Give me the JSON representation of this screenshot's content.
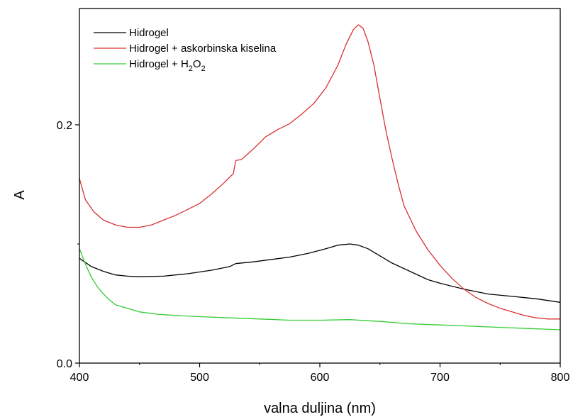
{
  "chart_data": {
    "type": "line",
    "xlabel": "valna duljina (nm)",
    "ylabel": "A",
    "xlim": [
      400,
      800
    ],
    "ylim": [
      0.0,
      0.29
    ],
    "x_ticks": [
      400,
      500,
      600,
      700,
      800
    ],
    "x_tick_labels": [
      "400",
      "500",
      "600",
      "700",
      "800"
    ],
    "y_ticks": [
      0.0,
      0.2
    ],
    "y_tick_labels": [
      "0.0",
      "0.2"
    ],
    "legend_position": "top-left",
    "grid": false,
    "series": [
      {
        "name": "Hidrogel",
        "color": "#000000",
        "points": [
          [
            400,
            0.088
          ],
          [
            410,
            0.081
          ],
          [
            420,
            0.077
          ],
          [
            430,
            0.074
          ],
          [
            440,
            0.073
          ],
          [
            450,
            0.0725
          ],
          [
            470,
            0.073
          ],
          [
            490,
            0.075
          ],
          [
            510,
            0.078
          ],
          [
            525,
            0.081
          ],
          [
            530,
            0.0835
          ],
          [
            545,
            0.085
          ],
          [
            560,
            0.087
          ],
          [
            575,
            0.089
          ],
          [
            590,
            0.092
          ],
          [
            605,
            0.096
          ],
          [
            615,
            0.099
          ],
          [
            625,
            0.1
          ],
          [
            632,
            0.099
          ],
          [
            640,
            0.096
          ],
          [
            650,
            0.09
          ],
          [
            660,
            0.084
          ],
          [
            675,
            0.077
          ],
          [
            690,
            0.07
          ],
          [
            700,
            0.067
          ],
          [
            720,
            0.062
          ],
          [
            740,
            0.058
          ],
          [
            760,
            0.056
          ],
          [
            780,
            0.054
          ],
          [
            800,
            0.051
          ]
        ]
      },
      {
        "name": "Hidrogel + askorbinska kiselina",
        "color": "#d93030",
        "points": [
          [
            400,
            0.155
          ],
          [
            405,
            0.137
          ],
          [
            412,
            0.127
          ],
          [
            420,
            0.12
          ],
          [
            430,
            0.116
          ],
          [
            440,
            0.114
          ],
          [
            450,
            0.114
          ],
          [
            460,
            0.116
          ],
          [
            470,
            0.12
          ],
          [
            480,
            0.124
          ],
          [
            490,
            0.129
          ],
          [
            500,
            0.134
          ],
          [
            510,
            0.142
          ],
          [
            520,
            0.151
          ],
          [
            528,
            0.159
          ],
          [
            530,
            0.17
          ],
          [
            535,
            0.171
          ],
          [
            545,
            0.18
          ],
          [
            555,
            0.19
          ],
          [
            565,
            0.196
          ],
          [
            575,
            0.201
          ],
          [
            585,
            0.209
          ],
          [
            595,
            0.218
          ],
          [
            605,
            0.231
          ],
          [
            615,
            0.25
          ],
          [
            622,
            0.268
          ],
          [
            628,
            0.28
          ],
          [
            632,
            0.284
          ],
          [
            636,
            0.281
          ],
          [
            640,
            0.27
          ],
          [
            645,
            0.25
          ],
          [
            650,
            0.222
          ],
          [
            655,
            0.195
          ],
          [
            660,
            0.172
          ],
          [
            665,
            0.151
          ],
          [
            670,
            0.132
          ],
          [
            680,
            0.111
          ],
          [
            690,
            0.095
          ],
          [
            700,
            0.082
          ],
          [
            710,
            0.071
          ],
          [
            720,
            0.062
          ],
          [
            730,
            0.055
          ],
          [
            740,
            0.05
          ],
          [
            750,
            0.046
          ],
          [
            760,
            0.043
          ],
          [
            770,
            0.04
          ],
          [
            780,
            0.038
          ],
          [
            790,
            0.037
          ],
          [
            800,
            0.037
          ]
        ]
      },
      {
        "name": "Hidrogel + H2O2",
        "color": "#33cc33",
        "points": [
          [
            400,
            0.096
          ],
          [
            405,
            0.083
          ],
          [
            410,
            0.072
          ],
          [
            415,
            0.064
          ],
          [
            420,
            0.058
          ],
          [
            425,
            0.053
          ],
          [
            430,
            0.049
          ],
          [
            440,
            0.046
          ],
          [
            450,
            0.043
          ],
          [
            465,
            0.041
          ],
          [
            480,
            0.04
          ],
          [
            500,
            0.039
          ],
          [
            525,
            0.038
          ],
          [
            550,
            0.037
          ],
          [
            575,
            0.036
          ],
          [
            600,
            0.036
          ],
          [
            625,
            0.0365
          ],
          [
            650,
            0.035
          ],
          [
            675,
            0.033
          ],
          [
            700,
            0.032
          ],
          [
            725,
            0.031
          ],
          [
            750,
            0.03
          ],
          [
            775,
            0.029
          ],
          [
            800,
            0.028
          ]
        ]
      }
    ]
  },
  "legend": [
    {
      "label": "Hidrogel",
      "color": "#000000"
    },
    {
      "label": "Hidrogel + askorbinska kiselina",
      "color": "#d93030"
    },
    {
      "label": "Hidrogel + H",
      "sub1": "2",
      "mid": "O",
      "sub2": "2",
      "color": "#33cc33"
    }
  ]
}
